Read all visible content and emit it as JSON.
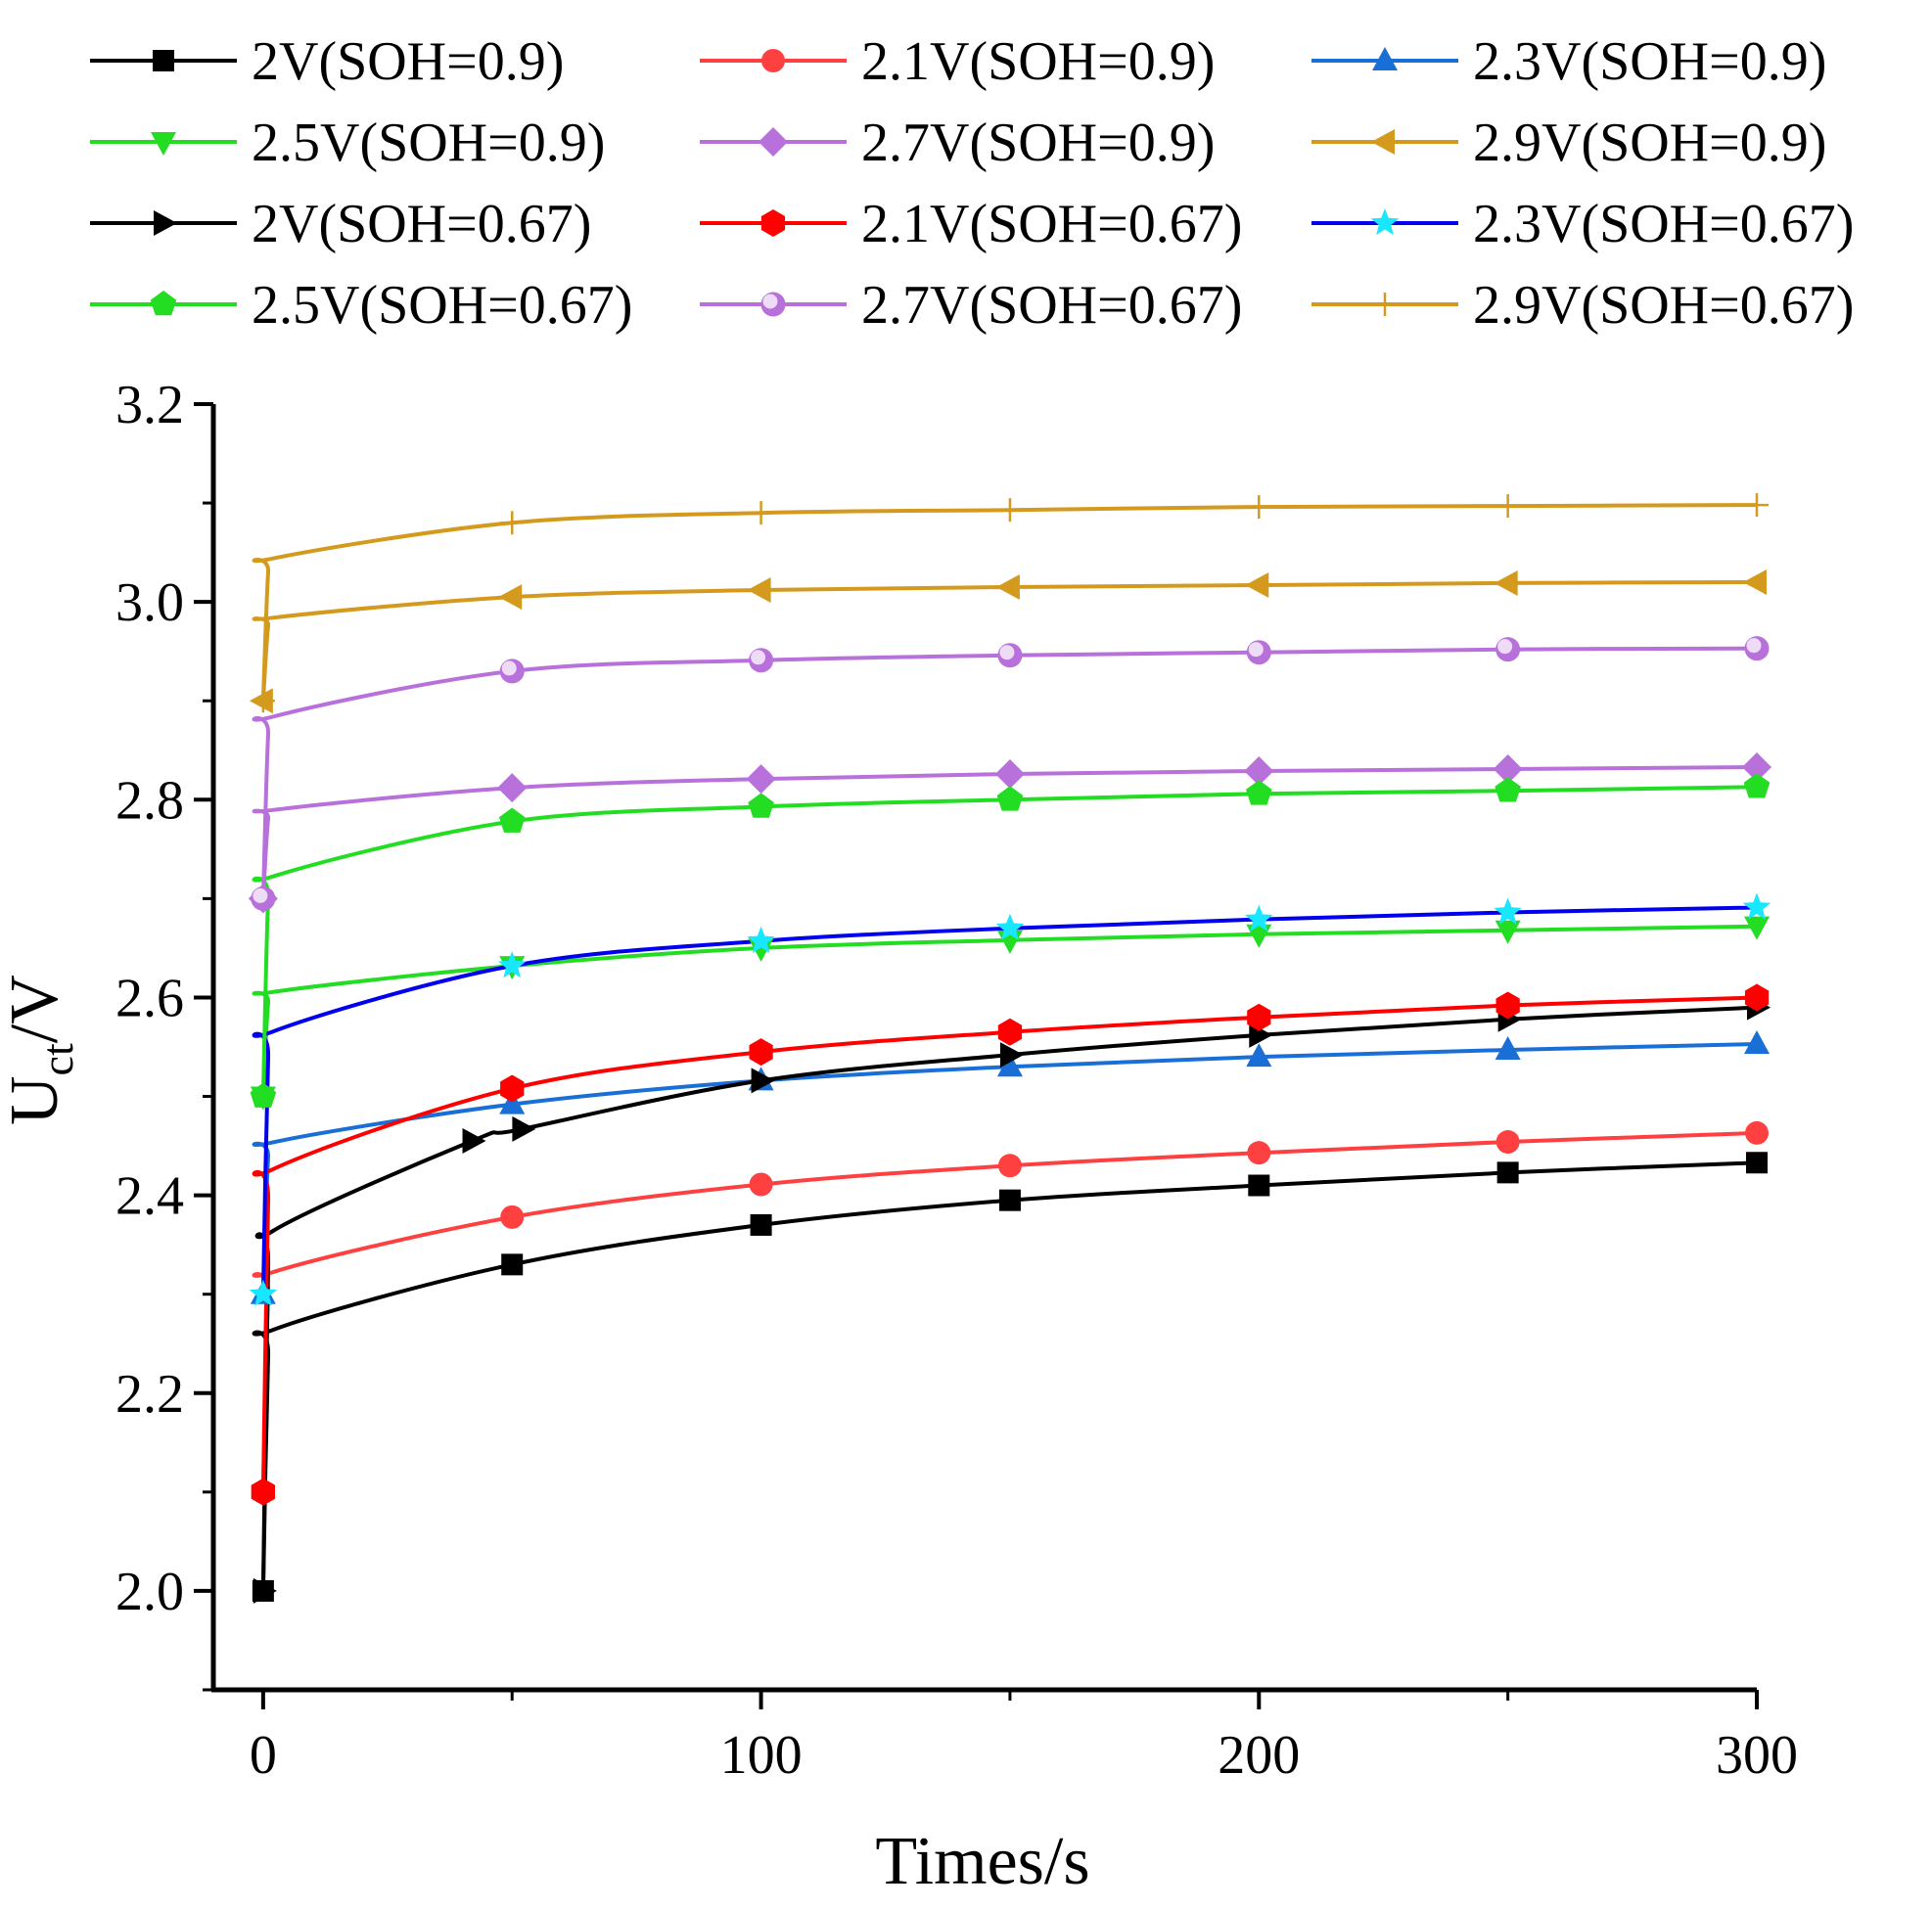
{
  "chart_data": {
    "type": "line",
    "title": "",
    "xlabel": "Times/s",
    "ylabel_main": "U",
    "ylabel_sub": "ct",
    "ylabel_tail": "/V",
    "xlim": [
      -10,
      300
    ],
    "ylim": [
      1.9,
      3.2
    ],
    "xticks": [
      0,
      100,
      200,
      300
    ],
    "xtick_labels": [
      "0",
      "100",
      "200",
      "300"
    ],
    "yticks": [
      2.0,
      2.2,
      2.4,
      2.6,
      2.8,
      3.0,
      3.2
    ],
    "ytick_labels": [
      "2.0",
      "2.2",
      "2.4",
      "2.6",
      "2.8",
      "3.0",
      "3.2"
    ],
    "legend_position": "top",
    "series": [
      {
        "name": "2V(SOH=0.9)",
        "color": "#000000",
        "marker": "square",
        "start": 2.0,
        "x": [
          0,
          50,
          100,
          150,
          200,
          250,
          300
        ],
        "values": [
          2.0,
          2.33,
          2.37,
          2.395,
          2.41,
          2.423,
          2.433
        ]
      },
      {
        "name": "2.1V(SOH=0.9)",
        "color": "#ff4040",
        "marker": "circle",
        "start": 2.1,
        "x": [
          0,
          50,
          100,
          150,
          200,
          250,
          300
        ],
        "values": [
          2.1,
          2.378,
          2.411,
          2.43,
          2.443,
          2.454,
          2.463
        ]
      },
      {
        "name": "2.3V(SOH=0.9)",
        "color": "#1a6fd6",
        "marker": "triangle-up",
        "start": 2.3,
        "x": [
          0,
          50,
          100,
          150,
          200,
          250,
          300
        ],
        "values": [
          2.3,
          2.492,
          2.516,
          2.53,
          2.54,
          2.547,
          2.553
        ]
      },
      {
        "name": "2.5V(SOH=0.9)",
        "color": "#22dd22",
        "marker": "triangle-down",
        "start": 2.5,
        "x": [
          0,
          50,
          100,
          150,
          200,
          250,
          300
        ],
        "values": [
          2.5,
          2.632,
          2.65,
          2.658,
          2.664,
          2.668,
          2.672
        ]
      },
      {
        "name": "2.7V(SOH=0.9)",
        "color": "#b870db",
        "marker": "diamond",
        "start": 2.7,
        "x": [
          0,
          50,
          100,
          150,
          200,
          250,
          300
        ],
        "values": [
          2.7,
          2.812,
          2.821,
          2.826,
          2.829,
          2.831,
          2.833
        ]
      },
      {
        "name": "2.9V(SOH=0.9)",
        "color": "#d49a1e",
        "marker": "triangle-left",
        "start": 2.9,
        "x": [
          0,
          50,
          100,
          150,
          200,
          250,
          300
        ],
        "values": [
          2.9,
          3.005,
          3.012,
          3.015,
          3.017,
          3.019,
          3.02
        ]
      },
      {
        "name": "2V(SOH=0.67)",
        "color": "#000000",
        "marker": "triangle-right",
        "start": 2.0,
        "x": [
          0,
          42,
          52,
          100,
          150,
          200,
          250,
          300
        ],
        "values": [
          2.0,
          2.455,
          2.467,
          2.516,
          2.542,
          2.562,
          2.578,
          2.59
        ]
      },
      {
        "name": "2.1V(SOH=0.67)",
        "color": "#ff0000",
        "marker": "hexagon",
        "start": 2.1,
        "x": [
          0,
          50,
          100,
          150,
          200,
          250,
          300
        ],
        "values": [
          2.1,
          2.508,
          2.545,
          2.565,
          2.58,
          2.592,
          2.6
        ]
      },
      {
        "name": "2.3V(SOH=0.67)",
        "color": "#0000ee",
        "marker": "star",
        "start": 2.3,
        "x": [
          0,
          50,
          100,
          150,
          200,
          250,
          300
        ],
        "values": [
          2.3,
          2.632,
          2.657,
          2.67,
          2.679,
          2.686,
          2.691
        ]
      },
      {
        "name": "2.5V(SOH=0.67)",
        "color": "#22dd22",
        "marker": "pentagon",
        "start": 2.5,
        "x": [
          0,
          50,
          100,
          150,
          200,
          250,
          300
        ],
        "values": [
          2.5,
          2.778,
          2.793,
          2.8,
          2.806,
          2.809,
          2.813
        ]
      },
      {
        "name": "2.7V(SOH=0.67)",
        "color": "#b870db",
        "marker": "sphere",
        "start": 2.7,
        "x": [
          0,
          50,
          100,
          150,
          200,
          250,
          300
        ],
        "values": [
          2.7,
          2.93,
          2.941,
          2.946,
          2.949,
          2.952,
          2.953
        ]
      },
      {
        "name": "2.9V(SOH=0.67)",
        "color": "#d49a1e",
        "marker": "plus",
        "start": 2.9,
        "x": [
          0,
          50,
          100,
          150,
          200,
          250,
          300
        ],
        "values": [
          2.9,
          3.08,
          3.09,
          3.093,
          3.096,
          3.097,
          3.098
        ]
      }
    ]
  }
}
